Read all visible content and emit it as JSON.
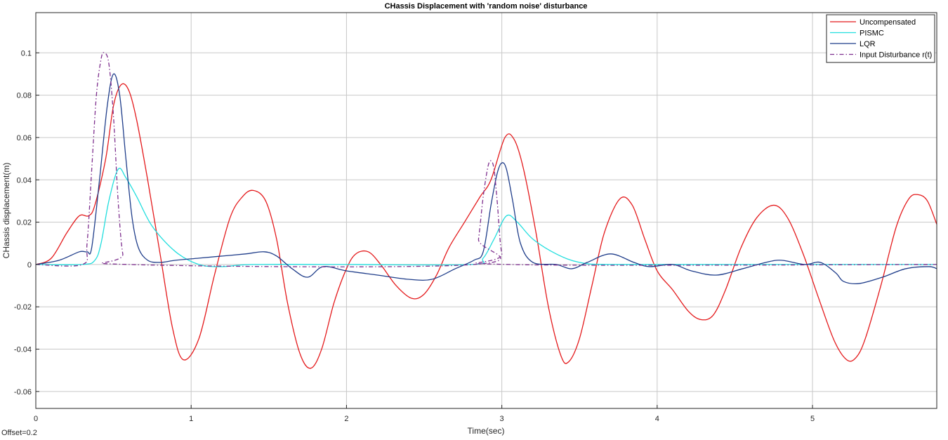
{
  "chart_data": {
    "type": "line",
    "title": "CHassis Displacement with 'random noise' disturbance",
    "xlabel": "Time(sec)",
    "ylabel": "CHassis displacement(m)",
    "xlim": [
      0,
      5.8
    ],
    "ylim": [
      -0.068,
      0.119
    ],
    "xticks": [
      0,
      1,
      2,
      3,
      4,
      5
    ],
    "yticks": [
      -0.06,
      -0.04,
      -0.02,
      0,
      0.02,
      0.04,
      0.06,
      0.08,
      0.1
    ],
    "grid": true,
    "legend_position": "top-right",
    "footer": "Offset=0.2",
    "series": [
      {
        "name": "Uncompensated",
        "color": "#e41a1c",
        "style": "solid",
        "x": [
          0,
          0.1,
          0.2,
          0.28,
          0.34,
          0.38,
          0.45,
          0.5,
          0.55,
          0.6,
          0.65,
          0.72,
          0.8,
          0.88,
          0.95,
          1.05,
          1.15,
          1.25,
          1.33,
          1.4,
          1.48,
          1.55,
          1.62,
          1.7,
          1.77,
          1.84,
          1.92,
          2.0,
          2.06,
          2.14,
          2.22,
          2.32,
          2.42,
          2.5,
          2.58,
          2.66,
          2.76,
          2.86,
          2.93,
          3.02,
          3.08,
          3.14,
          3.22,
          3.3,
          3.38,
          3.43,
          3.5,
          3.58,
          3.66,
          3.76,
          3.84,
          3.92,
          4.0,
          4.1,
          4.2,
          4.28,
          4.36,
          4.44,
          4.54,
          4.64,
          4.75,
          4.84,
          4.94,
          5.04,
          5.14,
          5.22,
          5.28,
          5.34,
          5.44,
          5.54,
          5.62,
          5.68,
          5.74,
          5.8
        ],
        "y": [
          0,
          0.003,
          0.015,
          0.023,
          0.023,
          0.028,
          0.05,
          0.075,
          0.085,
          0.082,
          0.068,
          0.04,
          0.005,
          -0.03,
          -0.045,
          -0.035,
          -0.005,
          0.022,
          0.032,
          0.035,
          0.03,
          0.012,
          -0.018,
          -0.042,
          -0.049,
          -0.04,
          -0.018,
          -0.002,
          0.005,
          0.006,
          0.0,
          -0.01,
          -0.016,
          -0.014,
          -0.005,
          0.008,
          0.02,
          0.032,
          0.04,
          0.06,
          0.059,
          0.045,
          0.015,
          -0.02,
          -0.043,
          -0.046,
          -0.035,
          -0.01,
          0.015,
          0.031,
          0.028,
          0.012,
          -0.003,
          -0.012,
          -0.022,
          -0.026,
          -0.024,
          -0.012,
          0.008,
          0.022,
          0.028,
          0.022,
          0.005,
          -0.016,
          -0.036,
          -0.045,
          -0.044,
          -0.035,
          -0.01,
          0.018,
          0.031,
          0.033,
          0.03,
          0.019
        ]
      },
      {
        "name": "PISMC",
        "color": "#22dede",
        "style": "solid",
        "x": [
          0,
          0.3,
          0.38,
          0.42,
          0.47,
          0.53,
          0.58,
          0.65,
          0.75,
          0.9,
          1.05,
          1.2,
          1.4,
          2.0,
          2.8,
          2.88,
          2.95,
          3.03,
          3.1,
          3.2,
          3.35,
          3.5,
          3.7,
          4.5,
          5.5,
          5.8
        ],
        "y": [
          0,
          0.0,
          0.002,
          0.01,
          0.03,
          0.045,
          0.041,
          0.032,
          0.018,
          0.006,
          0.0,
          -0.001,
          0.0,
          0.0,
          0.0,
          0.003,
          0.012,
          0.023,
          0.02,
          0.012,
          0.005,
          0.001,
          0.0,
          0.0,
          0.0,
          0.0
        ]
      },
      {
        "name": "LQR",
        "color": "#1f3d8a",
        "style": "solid",
        "x": [
          0,
          0.15,
          0.28,
          0.33,
          0.36,
          0.41,
          0.46,
          0.5,
          0.54,
          0.58,
          0.62,
          0.66,
          0.72,
          0.8,
          0.9,
          1.05,
          1.2,
          1.35,
          1.47,
          1.55,
          1.65,
          1.75,
          1.85,
          2.0,
          2.2,
          2.4,
          2.55,
          2.7,
          2.82,
          2.88,
          2.93,
          2.97,
          3.0,
          3.03,
          3.07,
          3.12,
          3.2,
          3.35,
          3.45,
          3.55,
          3.7,
          3.85,
          3.95,
          4.1,
          4.22,
          4.38,
          4.55,
          4.7,
          4.8,
          4.95,
          5.05,
          5.15,
          5.2,
          5.3,
          5.45,
          5.6,
          5.75,
          5.8
        ],
        "y": [
          0,
          0.002,
          0.006,
          0.006,
          0.008,
          0.04,
          0.075,
          0.09,
          0.08,
          0.05,
          0.022,
          0.008,
          0.002,
          0.001,
          0.002,
          0.003,
          0.004,
          0.005,
          0.006,
          0.004,
          -0.002,
          -0.006,
          -0.001,
          -0.003,
          -0.005,
          -0.007,
          -0.007,
          -0.002,
          0.002,
          0.006,
          0.028,
          0.043,
          0.048,
          0.045,
          0.03,
          0.01,
          0.001,
          0.0,
          -0.002,
          0.001,
          0.005,
          0.001,
          -0.001,
          0.0,
          -0.003,
          -0.005,
          -0.002,
          0.001,
          0.002,
          0.0,
          0.001,
          -0.004,
          -0.008,
          -0.009,
          -0.006,
          -0.002,
          -0.001,
          -0.002
        ]
      },
      {
        "name": "Input Disturbance r(t)",
        "color": "#7e2f8e",
        "style": "dashdot",
        "x": [
          0,
          0.3,
          0.33,
          0.36,
          0.39,
          0.42,
          0.44,
          0.47,
          0.5,
          0.53,
          0.56,
          0.6,
          2.82,
          2.85,
          2.88,
          2.91,
          2.93,
          2.95,
          2.97,
          3.0,
          3.05,
          5.8
        ],
        "y": [
          0,
          0.0,
          0.01,
          0.045,
          0.08,
          0.097,
          0.1,
          0.095,
          0.07,
          0.03,
          0.005,
          0.0,
          0.0,
          0.012,
          0.032,
          0.046,
          0.049,
          0.045,
          0.03,
          0.005,
          0.0,
          0.0
        ]
      }
    ]
  }
}
